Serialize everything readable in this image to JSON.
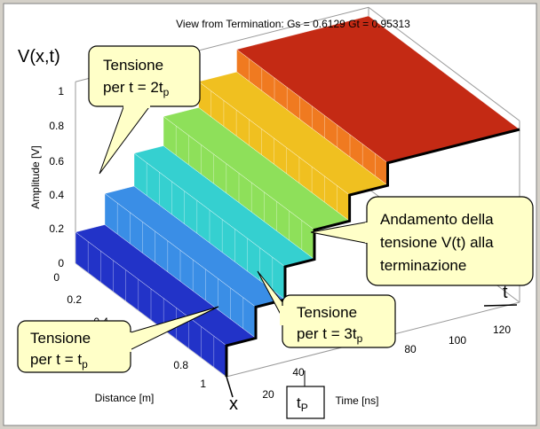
{
  "title": "View from Termination: Gs = 0.6129  Gt = 0.95313",
  "z_label": "V(x,t)",
  "amplitude_label": "Amplitude [V]",
  "distance_label": "Distance [m]",
  "time_label": "Time [ns]",
  "x_label": "x",
  "t_label": "t",
  "amplitude_ticks": [
    "0",
    "0.2",
    "0.4",
    "0.6",
    "0.8",
    "1"
  ],
  "distance_ticks": [
    "0",
    "0.2",
    "0.4",
    "0.8",
    "1"
  ],
  "time_ticks": [
    "20",
    "40",
    "80",
    "100",
    "120"
  ],
  "callouts": [
    {
      "line1": "Tensione",
      "line2": "per t = 2t",
      "sub": "p"
    },
    {
      "lines": [
        "Andamento della",
        "tensione V(t) alla",
        "terminazione"
      ]
    },
    {
      "line1": "Tensione",
      "line2": "per t = 3t",
      "sub": "p"
    },
    {
      "line1": "Tensione",
      "line2": "per t = t",
      "sub": "p"
    }
  ],
  "tp_box": {
    "text": "t",
    "sub": "P"
  }
}
